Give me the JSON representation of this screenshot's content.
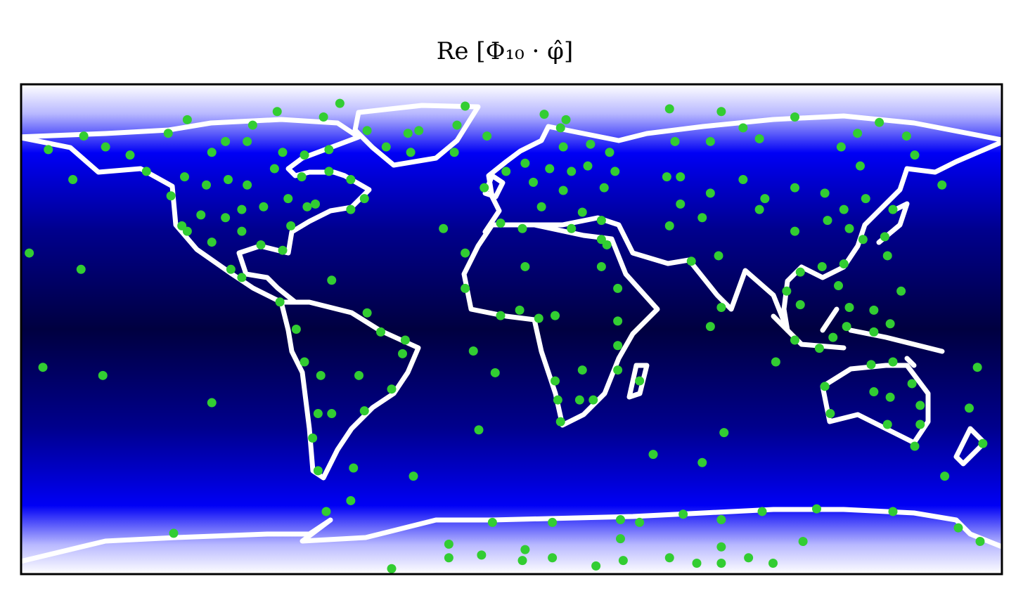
{
  "chart_data": {
    "type": "scatter",
    "title": "Re [Φ₁₀ · φ̂]",
    "color": "#32cd32",
    "xlim": [
      -180,
      180
    ],
    "ylim": [
      -90,
      90
    ],
    "x": [
      -177,
      -158,
      -172,
      -150,
      -110,
      -86,
      -63,
      -119,
      -95,
      -69,
      -157,
      -170,
      -161,
      -134,
      -125,
      -121,
      -110,
      -103,
      -99,
      -85,
      -66,
      -79,
      -76,
      -70,
      -71,
      -73,
      -71,
      -58,
      -54,
      -66,
      -56,
      -44,
      -48,
      -53,
      -39,
      -40,
      -36,
      -25,
      -17,
      -17,
      -12,
      -6,
      -14,
      -4,
      5,
      3,
      10,
      16,
      26,
      16,
      17,
      25,
      30,
      18,
      39,
      39,
      39,
      47,
      33,
      35,
      39,
      52,
      70,
      78,
      73,
      77,
      76,
      66,
      62,
      70,
      58,
      73,
      85,
      91,
      93,
      104,
      104,
      115,
      122,
      130,
      140,
      148,
      145,
      121,
      128,
      158,
      138,
      129,
      137,
      124,
      116,
      114,
      106,
      122,
      101,
      106,
      120,
      124,
      133,
      143,
      97,
      104,
      113,
      118,
      123,
      133,
      139,
      115,
      117,
      133,
      139,
      138,
      147,
      150,
      150,
      148,
      132,
      140,
      159,
      171,
      168,
      173,
      135,
      127,
      104,
      91,
      85,
      77,
      58,
      60,
      73,
      62,
      57,
      12,
      18,
      20,
      29,
      36,
      5,
      -2,
      -10,
      -4,
      4,
      8,
      14,
      19,
      22,
      28,
      19,
      11,
      26,
      33,
      34,
      38,
      22,
      33,
      -53,
      -46,
      -38,
      -34,
      -37,
      -21,
      -20,
      -17,
      -9,
      -149,
      -140,
      -126,
      -110,
      -105,
      -97,
      -84,
      -76,
      -67,
      -120,
      -112,
      -104,
      -97,
      -87,
      -77,
      -67,
      -59,
      -54,
      -59,
      -72,
      -82,
      -91,
      -99,
      -105,
      -114,
      -119,
      -99,
      -92,
      -81,
      -84,
      -75,
      -124,
      -68,
      -59,
      -44,
      -23,
      -23,
      -7,
      -11,
      5,
      4,
      15,
      15,
      31,
      41,
      40,
      40,
      47,
      58,
      63,
      68,
      77,
      77,
      77,
      87,
      92,
      96,
      107,
      112,
      140,
      164,
      172
    ],
    "values": [
      28,
      22,
      -14,
      -17,
      -27,
      80,
      83,
      77,
      75,
      78,
      71,
      66,
      55,
      58,
      49,
      38,
      32,
      22,
      19,
      10,
      18,
      0,
      -12,
      -17,
      -31,
      -40,
      -52,
      -51,
      -30,
      -31,
      -17,
      -22,
      -1,
      6,
      -4,
      -9,
      -54,
      37,
      28,
      15,
      -37,
      -16,
      -8,
      5,
      23,
      7,
      4,
      5,
      -15,
      -19,
      -26,
      -26,
      -26,
      -34,
      3,
      -6,
      -15,
      -19,
      23,
      31,
      15,
      -46,
      -49,
      -38,
      1,
      8,
      27,
      25,
      46,
      41,
      38,
      50,
      55,
      44,
      48,
      52,
      36,
      50,
      44,
      48,
      44,
      64,
      71,
      67,
      60,
      53,
      27,
      33,
      34,
      37,
      40,
      23,
      21,
      24,
      14,
      9,
      16,
      8,
      7,
      14,
      -12,
      -4,
      -7,
      -3,
      1,
      -1,
      2,
      -21,
      -31,
      -23,
      -25,
      -35,
      -20,
      -28,
      -35,
      -43,
      -13,
      -12,
      -54,
      -14,
      -29,
      -42,
      76,
      72,
      78,
      70,
      74,
      80,
      81,
      69,
      69,
      56,
      56,
      79,
      74,
      77,
      68,
      65,
      61,
      58,
      52,
      39,
      37,
      54,
      59,
      67,
      58,
      60,
      51,
      45,
      43,
      40,
      52,
      58,
      37,
      33,
      73,
      67,
      72,
      73,
      65,
      65,
      75,
      82,
      71,
      67,
      64,
      72,
      65,
      69,
      69,
      65,
      64,
      66,
      56,
      53,
      55,
      53,
      59,
      56,
      58,
      55,
      48,
      44,
      46,
      48,
      45,
      44,
      41,
      42,
      36,
      36,
      31,
      38,
      29,
      45,
      -75,
      -67,
      -63,
      -88,
      -79,
      -84,
      -71,
      -83,
      -81,
      -85,
      -71,
      -84,
      -87,
      -85,
      -70,
      -77,
      -71,
      -84,
      -68,
      -86,
      -70,
      -86,
      -80,
      -84,
      -67,
      -86,
      -78,
      -66,
      -67,
      -73,
      -78
    ]
  }
}
